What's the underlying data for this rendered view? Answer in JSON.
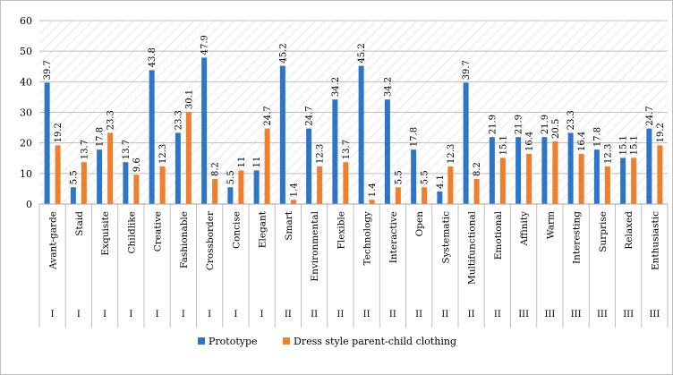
{
  "chart_data": {
    "type": "bar",
    "title": "",
    "xlabel": "",
    "ylabel": "",
    "ylim": [
      0,
      60
    ],
    "yticks": [
      0,
      10,
      20,
      30,
      40,
      50,
      60
    ],
    "grid": true,
    "legend_position": "bottom",
    "categories": [
      "Avant-garde",
      "Staid",
      "Exquisite",
      "Childlike",
      "Creative",
      "Fashionable",
      "Crossborder",
      "Concise",
      "Elegant",
      "Smart",
      "Environmental",
      "Flexible",
      "Technology",
      "Interactive",
      "Open",
      "Systematic",
      "Multifunctional",
      "Emotional",
      "Affinity",
      "Warm",
      "Interesting",
      "Surprise",
      "Relaxed",
      "Enthusiastic"
    ],
    "groups": [
      "I",
      "I",
      "I",
      "I",
      "I",
      "I",
      "I",
      "I",
      "I",
      "II",
      "II",
      "II",
      "II",
      "II",
      "II",
      "II",
      "II",
      "II",
      "III",
      "III",
      "III",
      "III",
      "III",
      "III"
    ],
    "series": [
      {
        "name": "Prototype",
        "color": "#2e75c9",
        "values": [
          39.7,
          5.5,
          17.8,
          13.7,
          43.8,
          23.3,
          47.9,
          5.5,
          11,
          45.2,
          24.7,
          34.2,
          45.2,
          34.2,
          17.8,
          4.1,
          39.7,
          21.9,
          21.9,
          21.9,
          23.3,
          17.8,
          15.1,
          24.7
        ]
      },
      {
        "name": "Dress style parent-child clothing",
        "color": "#f07f2d",
        "values": [
          19.2,
          13.7,
          23.3,
          9.6,
          12.3,
          30.1,
          8.2,
          11,
          24.7,
          1.4,
          12.3,
          13.7,
          1.4,
          5.5,
          5.5,
          12.3,
          8.2,
          15.1,
          16.4,
          20.5,
          16.4,
          12.3,
          15.1,
          19.2
        ]
      }
    ]
  }
}
